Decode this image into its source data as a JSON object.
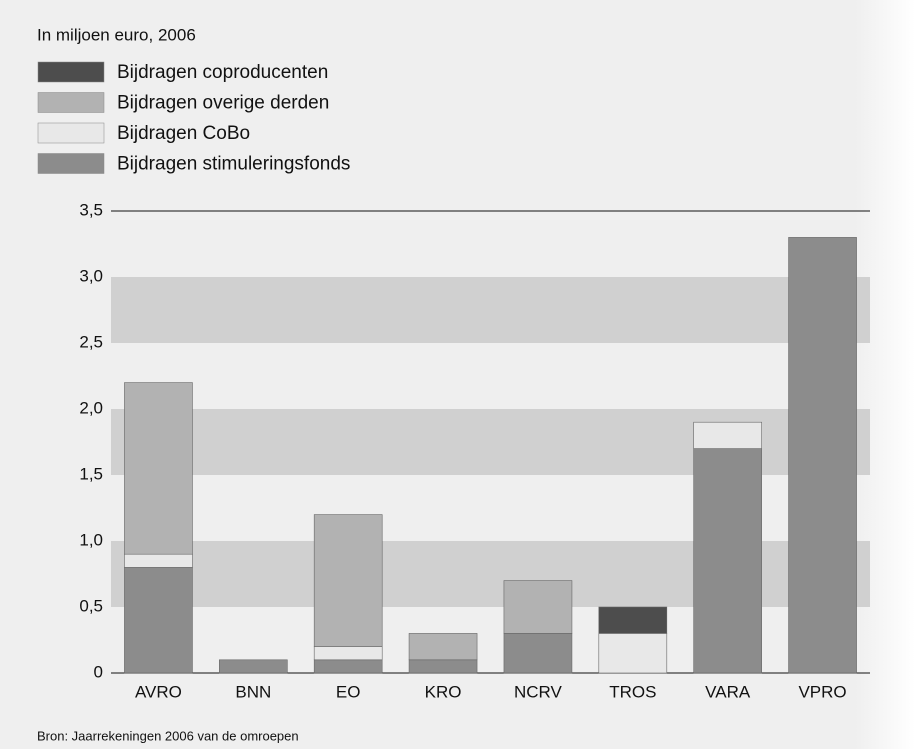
{
  "chart_data": {
    "type": "stacked_bar",
    "title": "In miljoen euro, 2006",
    "source": "Bron: Jaarrekeningen 2006 van de omroepen",
    "categories": [
      "AVRO",
      "BNN",
      "EO",
      "KRO",
      "NCRV",
      "TROS",
      "VARA",
      "VPRO"
    ],
    "series": [
      {
        "name": "Bijdragen stimuleringsfonds",
        "color": "#8c8c8c",
        "values": [
          0.8,
          0.1,
          0.1,
          0.1,
          0.3,
          0,
          1.7,
          3.3
        ]
      },
      {
        "name": "Bijdragen CoBo",
        "color": "#e8e8e8",
        "values": [
          0.1,
          0,
          0.1,
          0,
          0,
          0.3,
          0.2,
          0
        ]
      },
      {
        "name": "Bijdragen overige derden",
        "color": "#b2b2b2",
        "values": [
          1.3,
          0,
          1.0,
          0.2,
          0.4,
          0,
          0,
          0
        ]
      },
      {
        "name": "Bijdragen coproducenten",
        "color": "#4d4d4d",
        "values": [
          0,
          0,
          0,
          0,
          0,
          0.2,
          0,
          0
        ]
      }
    ],
    "ylim": [
      0,
      3.5
    ],
    "yticks": [
      0,
      {
        "value": 0.5,
        "label": "0,5"
      },
      {
        "value": 1,
        "label": "1,0"
      },
      {
        "value": 1.5,
        "label": "1,5"
      },
      {
        "value": 2,
        "label": "2,0"
      },
      {
        "value": 2.5,
        "label": "2,5"
      },
      {
        "value": 3,
        "label": "3,0"
      },
      {
        "value": 3.5,
        "label": "3,5"
      }
    ],
    "grid": true
  }
}
